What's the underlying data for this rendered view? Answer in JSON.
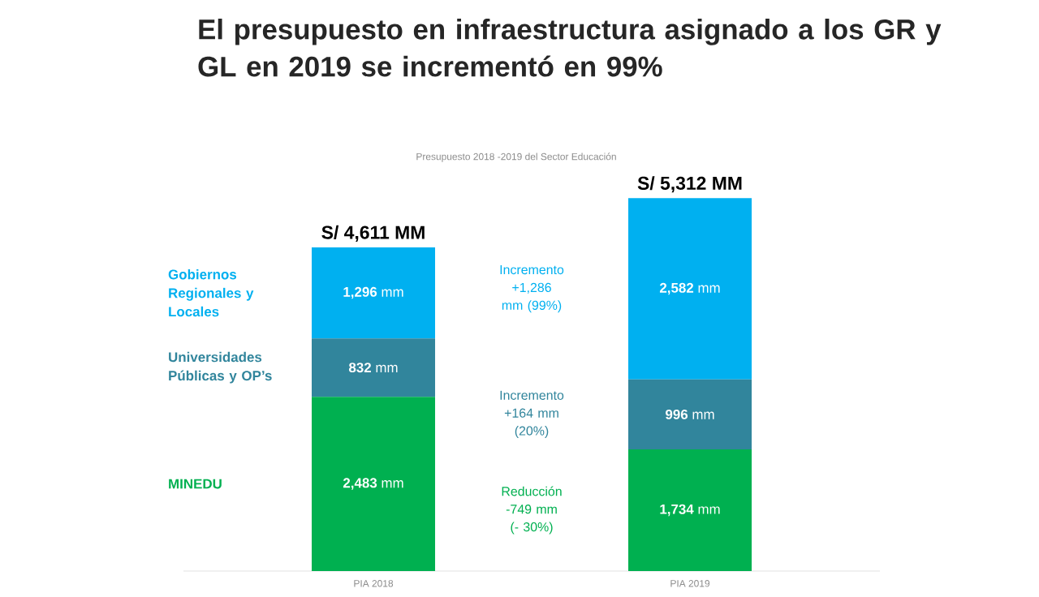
{
  "chart_data": {
    "type": "bar",
    "stacked": true,
    "title": "El presupuesto en infraestructura asignado a los GR y GL en 2019 se incrementó en 99%",
    "subtitle": "Presupuesto 2018 -2019 del Sector Educación",
    "categories": [
      "PIA 2018",
      "PIA 2019"
    ],
    "series": [
      {
        "name": "MINEDU",
        "color": "#00b050",
        "values": [
          2483,
          1734
        ],
        "value_labels": [
          "**2,483** mm",
          "**1,734** mm"
        ]
      },
      {
        "name": "Universidades Públicas y OP’s",
        "color": "#31859c",
        "values": [
          832,
          996
        ],
        "value_labels": [
          "**832** mm",
          "**996** mm"
        ]
      },
      {
        "name": "Gobiernos Regionales y Locales",
        "color": "#00b0f0",
        "values": [
          1296,
          2582
        ],
        "value_labels": [
          "**1,296** mm",
          "**2,582** mm"
        ]
      }
    ],
    "totals": [
      "S/ 4,611 MM",
      "S/ 5,312 MM"
    ],
    "annotations": [
      "Incremento +1,286 mm (99%)",
      "Incremento +164 mm (20%)",
      "Reducción -749 mm (- 30%)"
    ]
  }
}
